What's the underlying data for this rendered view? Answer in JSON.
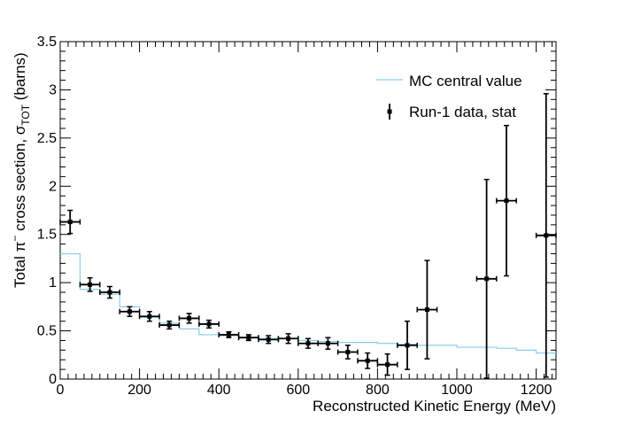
{
  "chart_data": {
    "type": "scatter",
    "title": "",
    "xlabel": "Reconstructed Kinetic Energy (MeV)",
    "ylabel": {
      "prefix": "Total π",
      "superscript": "−",
      "middle": " cross section, σ",
      "subscript": "TOT",
      "suffix": " (barns)"
    },
    "xlim": [
      0,
      1250
    ],
    "ylim": [
      0,
      3.5
    ],
    "x_ticks": [
      0,
      200,
      400,
      600,
      800,
      1000,
      1200
    ],
    "x_tick_labels": [
      "0",
      "200",
      "400",
      "600",
      "800",
      "1000",
      "1200"
    ],
    "y_ticks": [
      0,
      0.5,
      1,
      1.5,
      2,
      2.5,
      3,
      3.5
    ],
    "y_tick_labels": [
      "0",
      "0.5",
      "1",
      "1.5",
      "2",
      "2.5",
      "3",
      "3.5"
    ],
    "grid": false,
    "legend_position": "top-right",
    "colors": {
      "mc": "#87ceeb",
      "data": "#000000"
    },
    "series": [
      {
        "name": "MC central value",
        "kind": "step",
        "bin_edges": [
          0,
          50,
          100,
          150,
          200,
          250,
          300,
          350,
          400,
          450,
          500,
          550,
          600,
          650,
          700,
          750,
          800,
          850,
          900,
          950,
          1000,
          1050,
          1100,
          1150,
          1200,
          1250
        ],
        "values": [
          1.3,
          0.93,
          0.88,
          0.75,
          0.64,
          0.58,
          0.52,
          0.46,
          0.45,
          0.43,
          0.42,
          0.42,
          0.4,
          0.39,
          0.38,
          0.38,
          0.37,
          0.36,
          0.35,
          0.35,
          0.33,
          0.33,
          0.32,
          0.3,
          0.27
        ]
      },
      {
        "name": "Run-1 data, stat",
        "kind": "errorbar",
        "x_half_width": 25,
        "points": [
          {
            "x": 25,
            "y": 1.63,
            "err": 0.12
          },
          {
            "x": 75,
            "y": 0.98,
            "err": 0.07
          },
          {
            "x": 125,
            "y": 0.9,
            "err": 0.06
          },
          {
            "x": 175,
            "y": 0.7,
            "err": 0.05
          },
          {
            "x": 225,
            "y": 0.65,
            "err": 0.05
          },
          {
            "x": 275,
            "y": 0.56,
            "err": 0.04
          },
          {
            "x": 325,
            "y": 0.63,
            "err": 0.05
          },
          {
            "x": 375,
            "y": 0.57,
            "err": 0.04
          },
          {
            "x": 425,
            "y": 0.46,
            "err": 0.03
          },
          {
            "x": 475,
            "y": 0.43,
            "err": 0.03
          },
          {
            "x": 525,
            "y": 0.41,
            "err": 0.04
          },
          {
            "x": 575,
            "y": 0.42,
            "err": 0.05
          },
          {
            "x": 625,
            "y": 0.37,
            "err": 0.05
          },
          {
            "x": 675,
            "y": 0.37,
            "err": 0.06
          },
          {
            "x": 725,
            "y": 0.28,
            "err": 0.07
          },
          {
            "x": 775,
            "y": 0.19,
            "err": 0.08
          },
          {
            "x": 825,
            "y": 0.15,
            "err": 0.11
          },
          {
            "x": 875,
            "y": 0.35,
            "err": 0.25
          },
          {
            "x": 925,
            "y": 0.72,
            "err": 0.51
          },
          {
            "x": 1075,
            "y": 1.04,
            "err": 1.03
          },
          {
            "x": 1125,
            "y": 1.85,
            "err": 0.78
          },
          {
            "x": 1225,
            "y": 1.49,
            "err": 1.47
          }
        ]
      }
    ]
  }
}
